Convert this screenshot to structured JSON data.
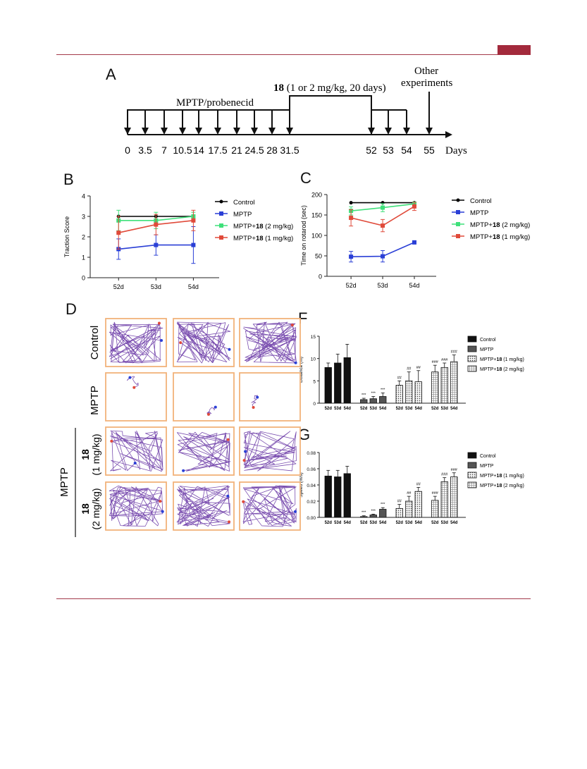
{
  "colors": {
    "accent": "#a32a3c",
    "frame": "#f2b27a",
    "track": "#7b4fb0",
    "control": "#000000",
    "mptp": "#2a3fd6",
    "d2": "#3fe07a",
    "d1": "#e04a3a"
  },
  "panelA": {
    "label": "A",
    "phase1": "MPTP/probenecid",
    "phase2_bold": "18",
    "phase2_rest": " (1 or 2 mg/kg, 20 days)",
    "other1": "Other",
    "other2": "experiments",
    "ticks": [
      "0",
      "3.5",
      "7",
      "10.5",
      "14",
      "17.5",
      "21",
      "24.5",
      "28",
      "31.5",
      "52",
      "53",
      "54",
      "55"
    ],
    "unit": "Days"
  },
  "legend": [
    {
      "pre": "Control",
      "bold": "",
      "post": ""
    },
    {
      "pre": "MPTP",
      "bold": "",
      "post": ""
    },
    {
      "pre": "MPTP+",
      "bold": "18",
      "post": " (2 mg/kg)"
    },
    {
      "pre": "MPTP+",
      "bold": "18",
      "post": " (1 mg/kg)"
    }
  ],
  "legendFG": [
    {
      "pre": "Control",
      "bold": "",
      "post": ""
    },
    {
      "pre": "MPTP",
      "bold": "",
      "post": ""
    },
    {
      "pre": "MPTP+",
      "bold": "18",
      "post": " (1 mg/kg)"
    },
    {
      "pre": "MPTP+",
      "bold": "18",
      "post": " (2 mg/kg)"
    }
  ],
  "panelD": {
    "label": "D",
    "rows": [
      "Control",
      "MPTP"
    ],
    "group": "MPTP",
    "dose1_bold": "18",
    "dose1": "(1 mg/kg)",
    "dose2_bold": "18",
    "dose2": "(2 mg/kg)"
  },
  "chart_data": [
    {
      "id": "B",
      "label": "B",
      "type": "line",
      "categories": [
        "52d",
        "53d",
        "54d"
      ],
      "ylabel": "Traction Score",
      "ylim": [
        0,
        4
      ],
      "yticks": [
        "0",
        "1",
        "2",
        "3",
        "4"
      ],
      "series": [
        {
          "name": "Control",
          "values": [
            3,
            3,
            3
          ],
          "err": [
            0,
            0,
            0
          ]
        },
        {
          "name": "MPTP",
          "values": [
            1.4,
            1.6,
            1.6
          ],
          "err": [
            0.5,
            0.5,
            0.9
          ]
        },
        {
          "name": "MPTP+18 (2 mg/kg)",
          "values": [
            2.8,
            2.8,
            3.0
          ],
          "err": [
            0.5,
            0.4,
            0.2
          ]
        },
        {
          "name": "MPTP+18 (1 mg/kg)",
          "values": [
            2.2,
            2.6,
            2.8
          ],
          "err": [
            0.8,
            0.5,
            0.5
          ]
        }
      ]
    },
    {
      "id": "C",
      "label": "C",
      "type": "line",
      "categories": [
        "52d",
        "53d",
        "54d"
      ],
      "ylabel": "Time on rotarod (sec)",
      "ylim": [
        0,
        200
      ],
      "yticks": [
        "0",
        "50",
        "100",
        "150",
        "200"
      ],
      "series": [
        {
          "name": "Control",
          "values": [
            180,
            180,
            180
          ],
          "err": [
            0,
            0,
            0
          ]
        },
        {
          "name": "MPTP",
          "values": [
            48,
            49,
            83
          ],
          "err": [
            13,
            14,
            4
          ]
        },
        {
          "name": "MPTP+18 (2 mg/kg)",
          "values": [
            160,
            168,
            177
          ],
          "err": [
            10,
            10,
            5
          ]
        },
        {
          "name": "MPTP+18 (1 mg/kg)",
          "values": [
            143,
            124,
            171
          ],
          "err": [
            20,
            15,
            10
          ]
        }
      ]
    },
    {
      "id": "F",
      "label": "F",
      "type": "bar",
      "categories": [
        "52d",
        "53d",
        "54d"
      ],
      "ylabel": "Distance (m)",
      "ylim": [
        0,
        15
      ],
      "yticks": [
        "0",
        "5",
        "10",
        "15"
      ],
      "series": [
        {
          "name": "Control",
          "values": [
            8.0,
            9.0,
            10.2
          ],
          "err": [
            1.0,
            2.0,
            3.0
          ],
          "marks": [
            "",
            "",
            ""
          ]
        },
        {
          "name": "MPTP",
          "values": [
            0.8,
            1.0,
            1.5
          ],
          "err": [
            0.3,
            0.5,
            0.8
          ],
          "marks": [
            "***",
            "***",
            "***"
          ]
        },
        {
          "name": "MPTP+18 (1 mg/kg)",
          "values": [
            4.0,
            5.0,
            4.8
          ],
          "err": [
            1.0,
            2.0,
            2.5
          ],
          "marks": [
            "##",
            "##",
            "##"
          ]
        },
        {
          "name": "MPTP+18 (2 mg/kg)",
          "values": [
            7.0,
            8.0,
            9.3
          ],
          "err": [
            1.5,
            1.0,
            1.5
          ],
          "marks": [
            "###",
            "###",
            "###"
          ]
        }
      ]
    },
    {
      "id": "G",
      "label": "G",
      "type": "bar",
      "categories": [
        "52d",
        "53d",
        "54d"
      ],
      "ylabel": "Speed (m/s)",
      "ylim": [
        0,
        0.08
      ],
      "yticks": [
        "0.00",
        "0.02",
        "0.04",
        "0.06",
        "0.08"
      ],
      "series": [
        {
          "name": "Control",
          "values": [
            0.051,
            0.05,
            0.054
          ],
          "err": [
            0.007,
            0.008,
            0.009
          ],
          "marks": [
            "",
            "",
            ""
          ]
        },
        {
          "name": "MPTP",
          "values": [
            0.001,
            0.003,
            0.01
          ],
          "err": [
            0.001,
            0.001,
            0.002
          ],
          "marks": [
            "***",
            "***",
            "***"
          ]
        },
        {
          "name": "MPTP+18 (1 mg/kg)",
          "values": [
            0.011,
            0.02,
            0.032
          ],
          "err": [
            0.005,
            0.006,
            0.005
          ],
          "marks": [
            "##",
            "##",
            "##"
          ]
        },
        {
          "name": "MPTP+18 (2 mg/kg)",
          "values": [
            0.021,
            0.044,
            0.05
          ],
          "err": [
            0.005,
            0.005,
            0.005
          ],
          "marks": [
            "###",
            "###",
            "###"
          ]
        }
      ]
    }
  ]
}
